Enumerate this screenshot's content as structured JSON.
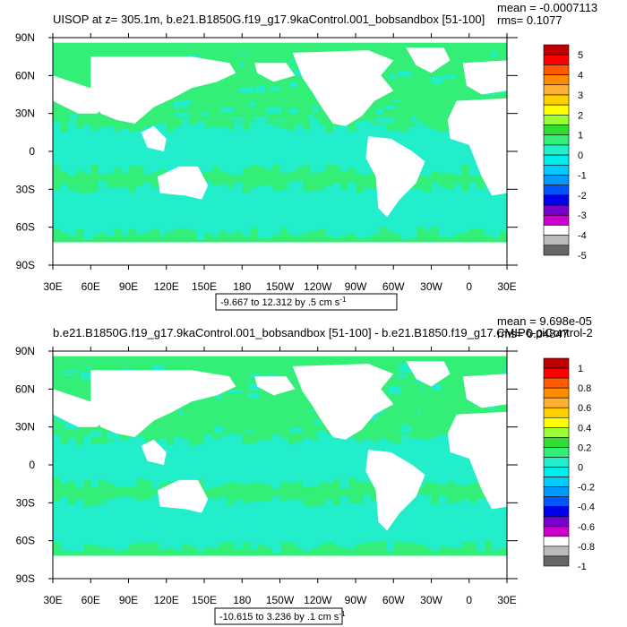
{
  "chart_data": [
    {
      "type": "heatmap",
      "title": "UISOP at z= 305.1m, b.e21.B1850G.f19_g17.9kaControl.001_bobsandbox [51-100]",
      "stats": {
        "mean": "mean = -0.0007113",
        "rms": "rms= 0.1077"
      },
      "x_ticks": [
        "30E",
        "60E",
        "90E",
        "120E",
        "150E",
        "180",
        "150W",
        "120W",
        "90W",
        "60W",
        "30W",
        "0",
        "30E"
      ],
      "y_ticks": [
        "90N",
        "60N",
        "30N",
        "0",
        "30S",
        "60S",
        "90S"
      ],
      "xlim": [
        30,
        390
      ],
      "ylim": [
        -90,
        90
      ],
      "range_label": "-9.667 to 12.312 by .5 cm s",
      "range_unit_exp": "-1",
      "colorbar": {
        "labels": [
          "5",
          "4",
          "3",
          "2",
          "1",
          "0",
          "-1",
          "-2",
          "-3",
          "-4",
          "-5"
        ],
        "colors": [
          "#c00000",
          "#ff0000",
          "#ff5a00",
          "#ff8c00",
          "#ffb030",
          "#ffd000",
          "#ffff00",
          "#99ff33",
          "#33dd33",
          "#33ee77",
          "#22eecc",
          "#00eeee",
          "#00ccff",
          "#0099ff",
          "#0055ff",
          "#0000ee",
          "#7700cc",
          "#cc00cc",
          "#ffffff",
          "#bbbbbb",
          "#666666"
        ]
      }
    },
    {
      "type": "heatmap",
      "title": "b.e21.B1850G.f19_g17.9kaControl.001_bobsandbox [51-100] - b.e21.B1850.f19_g17.CMIP6-piControl-2",
      "stats": {
        "mean": "mean = 9.698e-05",
        "rms": "rms= 0.04847"
      },
      "x_ticks": [
        "30E",
        "60E",
        "90E",
        "120E",
        "150E",
        "180",
        "150W",
        "120W",
        "90W",
        "60W",
        "30W",
        "0",
        "30E"
      ],
      "y_ticks": [
        "90N",
        "60N",
        "30N",
        "0",
        "30S",
        "60S",
        "90S"
      ],
      "xlim": [
        30,
        390
      ],
      "ylim": [
        -90,
        90
      ],
      "range_label": "-10.615 to 3.236 by .1 cm s",
      "range_unit_exp": "-1",
      "colorbar": {
        "labels": [
          "1",
          "0.8",
          "0.6",
          "0.4",
          "0.2",
          "0",
          "-0.2",
          "-0.4",
          "-0.6",
          "-0.8",
          "-1"
        ],
        "colors": [
          "#c00000",
          "#ff0000",
          "#ff5a00",
          "#ff8c00",
          "#ffb030",
          "#ffd000",
          "#ffff00",
          "#99ff33",
          "#33dd33",
          "#33ee77",
          "#22eecc",
          "#00eeee",
          "#00ccff",
          "#0099ff",
          "#0055ff",
          "#0000ee",
          "#7700cc",
          "#cc00cc",
          "#ffffff",
          "#bbbbbb",
          "#666666"
        ]
      }
    }
  ],
  "palette": {
    "ocean_green": "#33ee77",
    "ocean_cyan": "#22eecc",
    "land": "#ffffff",
    "frame": "#000000"
  }
}
